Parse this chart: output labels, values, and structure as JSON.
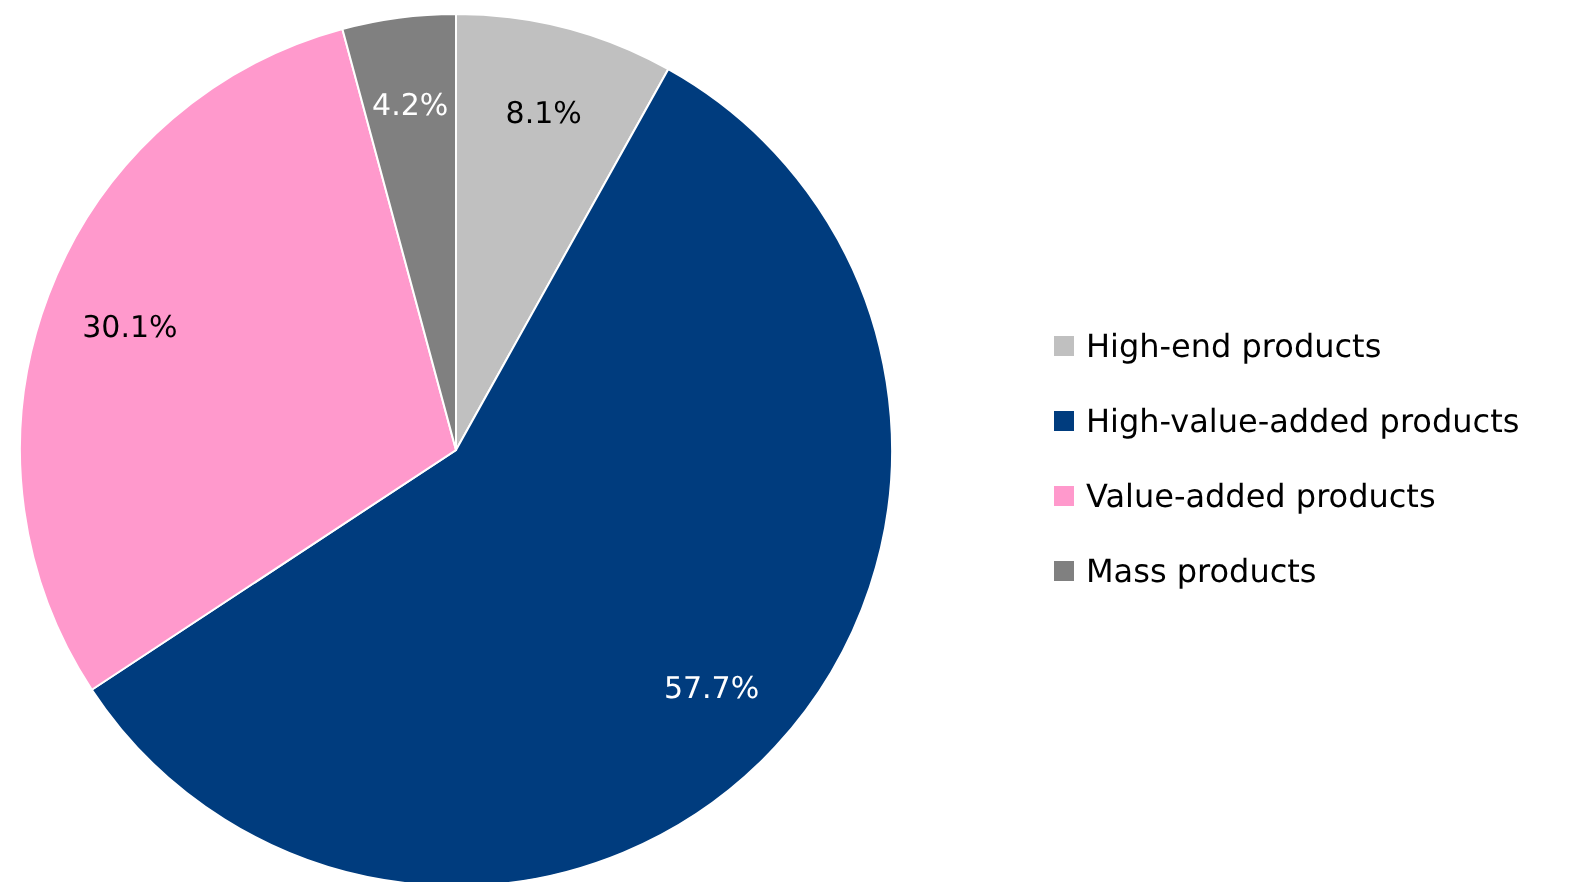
{
  "chart_data": {
    "type": "pie",
    "categories": [
      "High-end products",
      "High-value-added products",
      "Value-added products",
      "Mass products"
    ],
    "values": [
      8.1,
      57.7,
      30.1,
      4.2
    ],
    "value_labels": [
      "8.1%",
      "57.7%",
      "30.1%",
      "4.2%"
    ],
    "colors": [
      "#c0c0c0",
      "#003c7e",
      "#ff99cc",
      "#808080"
    ],
    "legend": "right"
  }
}
